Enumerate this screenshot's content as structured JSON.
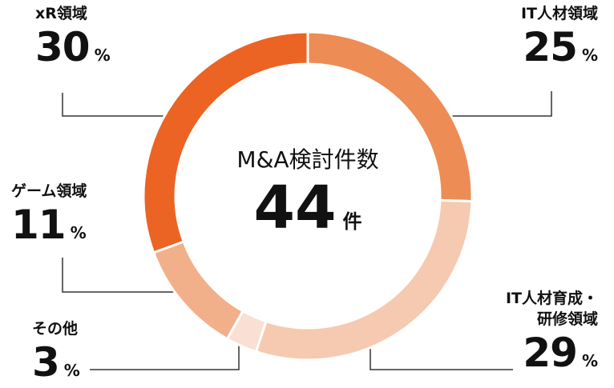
{
  "chart_data": {
    "type": "donut",
    "center_label": "M&A検討件数",
    "total": 44,
    "total_unit": "件",
    "unit": "%",
    "categories": [
      "IT人材領域",
      "IT人材育成・\n研修領域",
      "その他",
      "ゲーム領域",
      "xR領域"
    ],
    "values": [
      25,
      29,
      3,
      11,
      30
    ],
    "colors": [
      "#ed8c55",
      "#f6cab0",
      "#f9e0d3",
      "#f2b08a",
      "#eb6424"
    ]
  }
}
